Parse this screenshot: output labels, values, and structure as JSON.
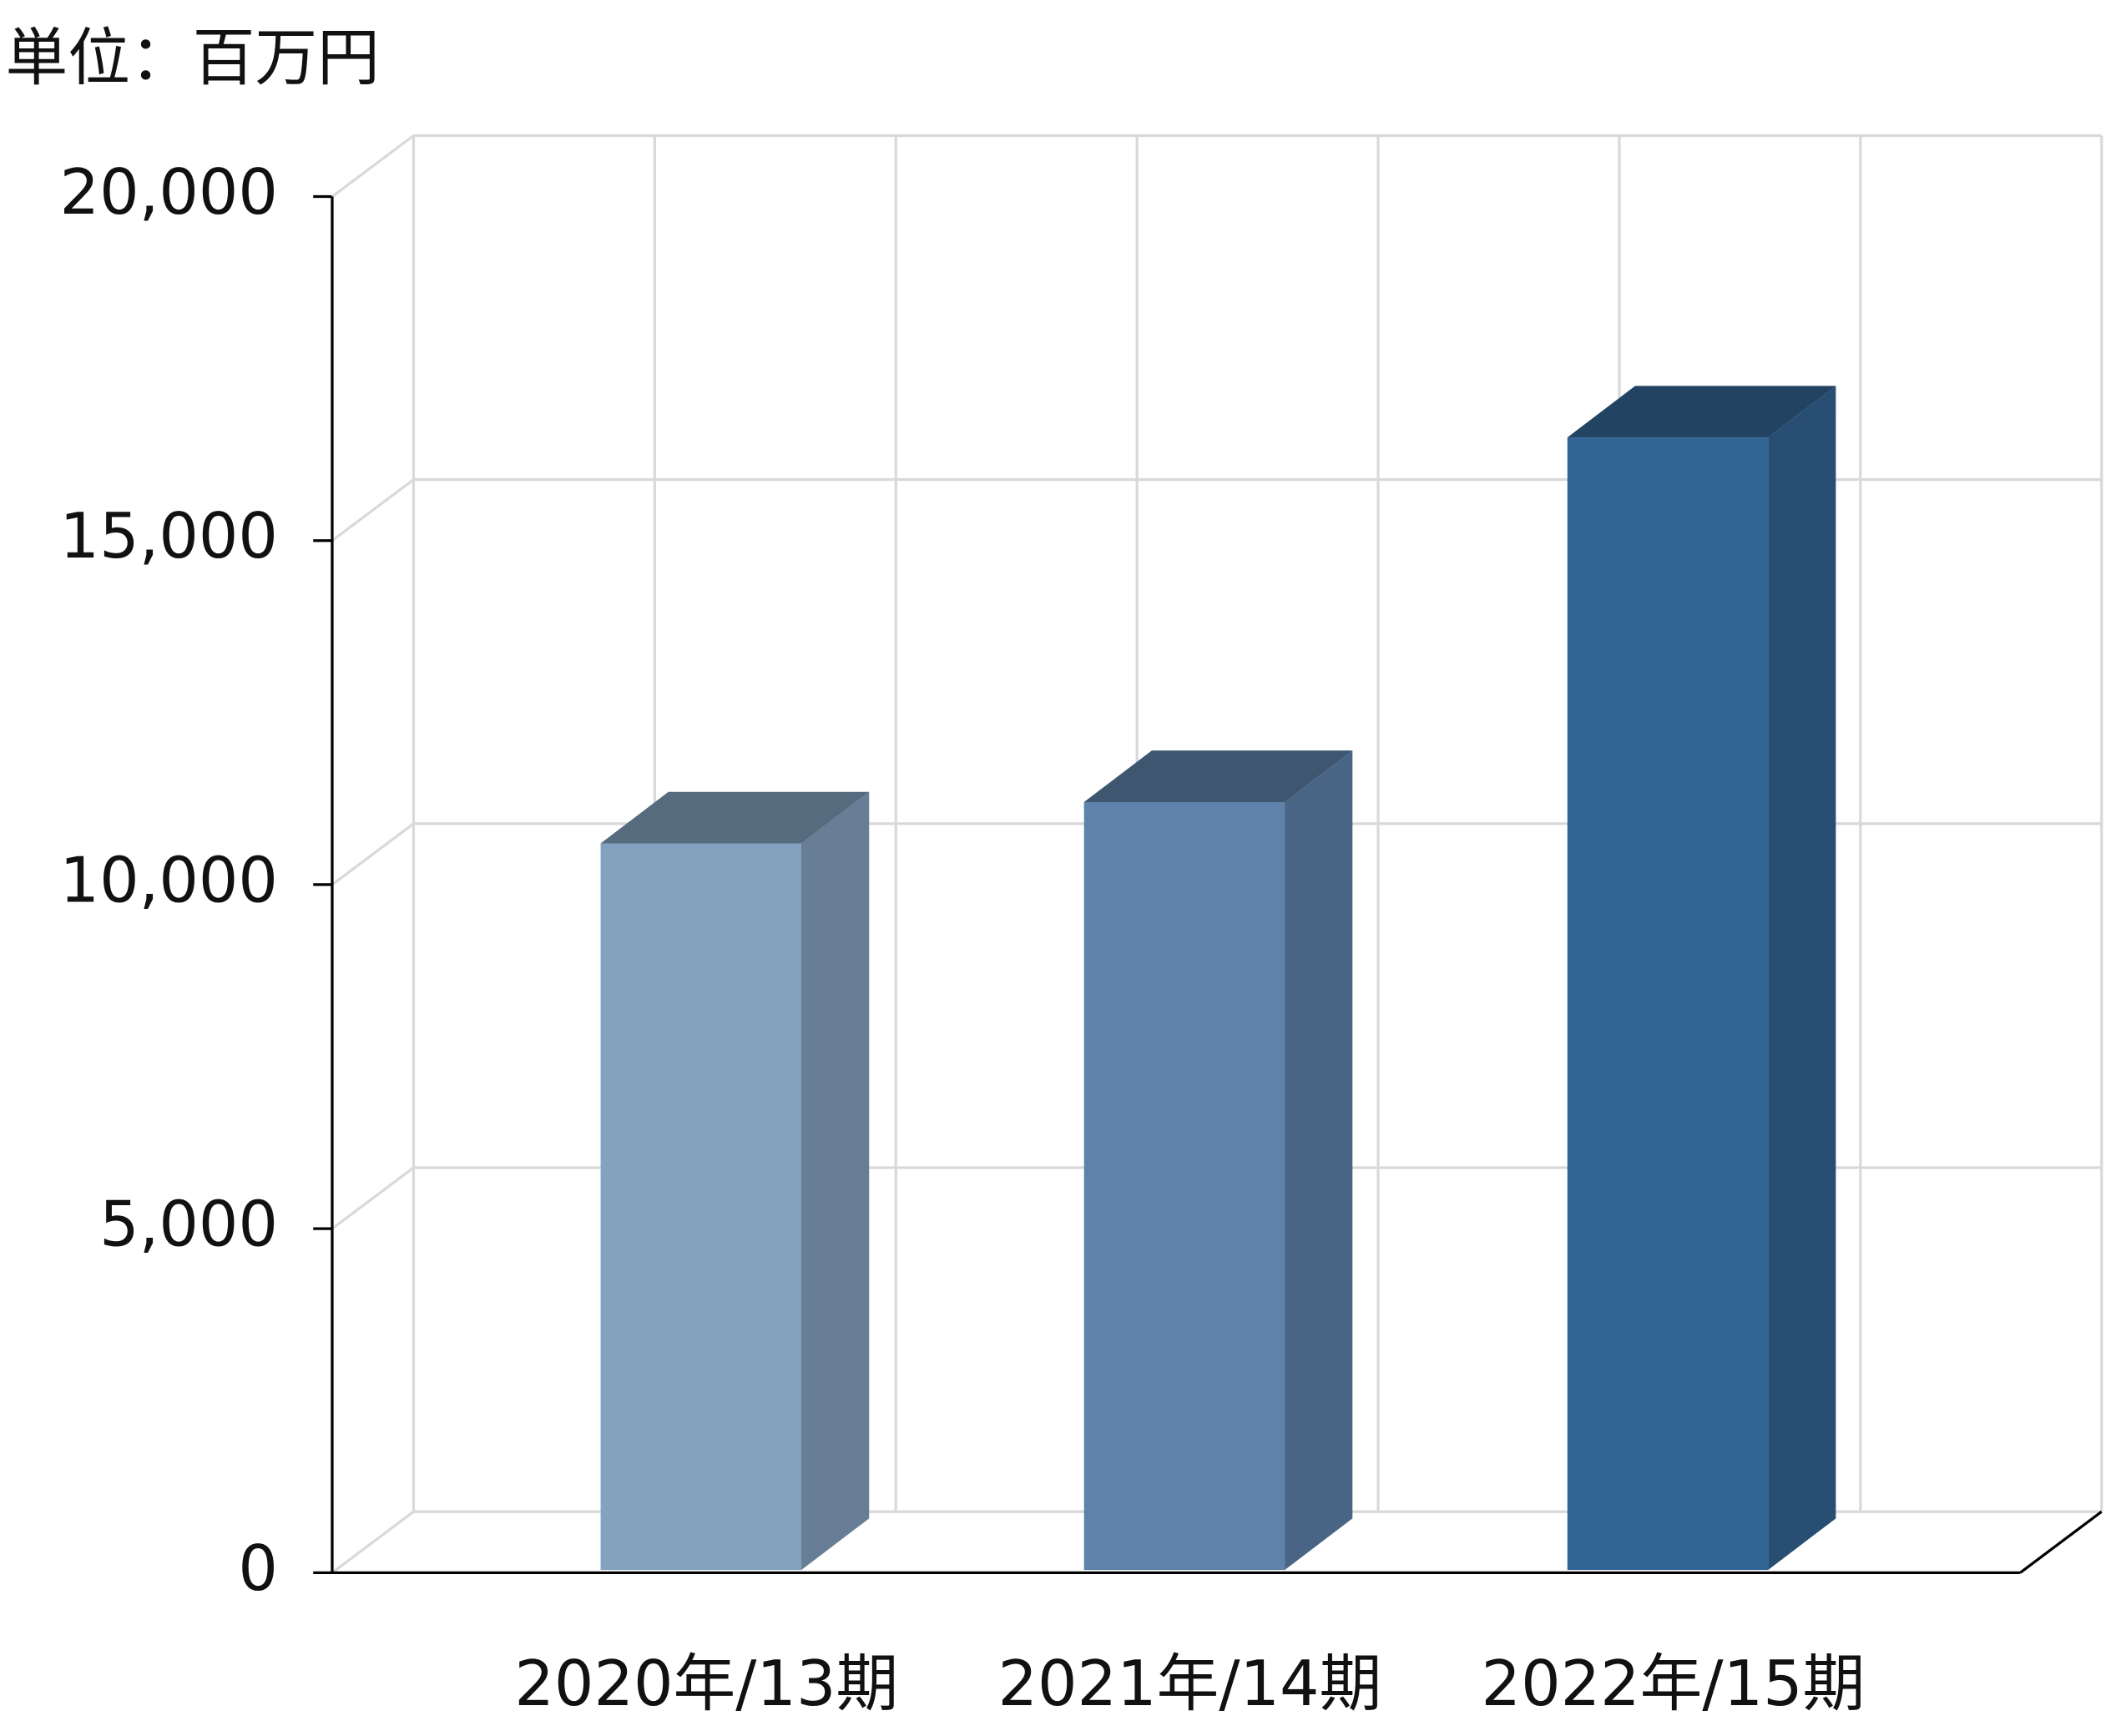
{
  "chart_data": {
    "type": "bar3d",
    "title": "単位：百万円",
    "categories": [
      "2020年/13期",
      "2021年/14期",
      "2022年/15期"
    ],
    "values": [
      10600,
      11200,
      16500
    ],
    "colors": [
      "#84a2c0",
      "#5e82aa",
      "#336594"
    ],
    "ylim": [
      0,
      20000
    ],
    "yticks": [
      0,
      {
        "value": 5000,
        "label": "5,000"
      },
      {
        "value": 10000,
        "label": "10,000"
      },
      {
        "value": 15000,
        "label": "15,000"
      },
      {
        "value": 20000,
        "label": "20,000"
      }
    ],
    "grid": true
  }
}
